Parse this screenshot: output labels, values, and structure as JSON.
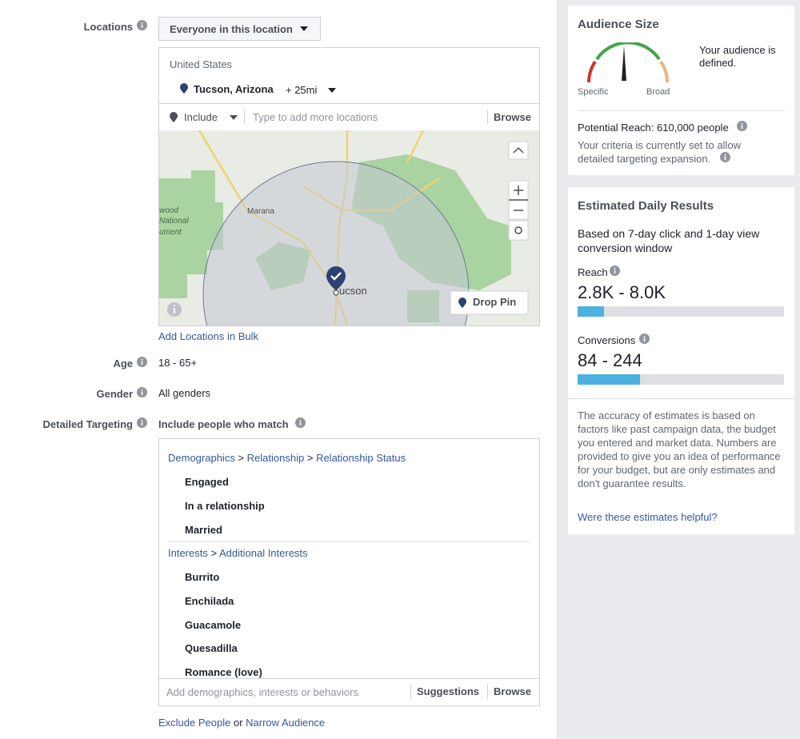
{
  "locations": {
    "label": "Locations",
    "mode": "Everyone in this location",
    "country": "United States",
    "city": "Tucson, Arizona",
    "radius": "+ 25mi",
    "include": "Include",
    "placeholder": "Type to add more locations",
    "browse": "Browse",
    "map_labels": [
      "wood",
      "National",
      "ument",
      "Marana",
      "ucson"
    ],
    "drop_pin": "Drop Pin",
    "bulk": "Add Locations in Bulk"
  },
  "age": {
    "label": "Age",
    "value": "18 - 65+"
  },
  "gender": {
    "label": "Gender",
    "value": "All genders"
  },
  "targeting": {
    "label": "Detailed Targeting",
    "heading": "Include people who match",
    "separator": ">",
    "groups": [
      {
        "path": [
          "Demographics",
          "Relationship",
          "Relationship Status"
        ],
        "items": [
          "Engaged",
          "In a relationship",
          "Married"
        ]
      },
      {
        "path": [
          "Interests",
          "Additional Interests"
        ],
        "items": [
          "Burrito",
          "Enchilada",
          "Guacamole",
          "Quesadilla",
          "Romance (love)"
        ]
      }
    ],
    "placeholder": "Add demographics, interests or behaviors",
    "suggestions": "Suggestions",
    "browse": "Browse",
    "exclude": "Exclude People",
    "or": "or",
    "narrow": "Narrow Audience"
  },
  "audience": {
    "title": "Audience Size",
    "specific": "Specific",
    "broad": "Broad",
    "status": "Your audience is defined.",
    "reach_label": "Potential Reach:",
    "reach_value": "610,000 people",
    "note": "Your criteria is currently set to allow detailed targeting expansion."
  },
  "results": {
    "title": "Estimated Daily Results",
    "window": "Based on 7-day click and 1-day view conversion window",
    "reach_label": "Reach",
    "reach_value": "2.8K - 8.0K",
    "conv_label": "Conversions",
    "conv_value": "84 - 244",
    "disclaimer": "The accuracy of estimates is based on factors like past campaign data, the budget you entered and market data. Numbers are provided to give you an idea of performance for your budget, but are only estimates and don't guarantee results.",
    "feedback": "Were these estimates helpful?"
  }
}
